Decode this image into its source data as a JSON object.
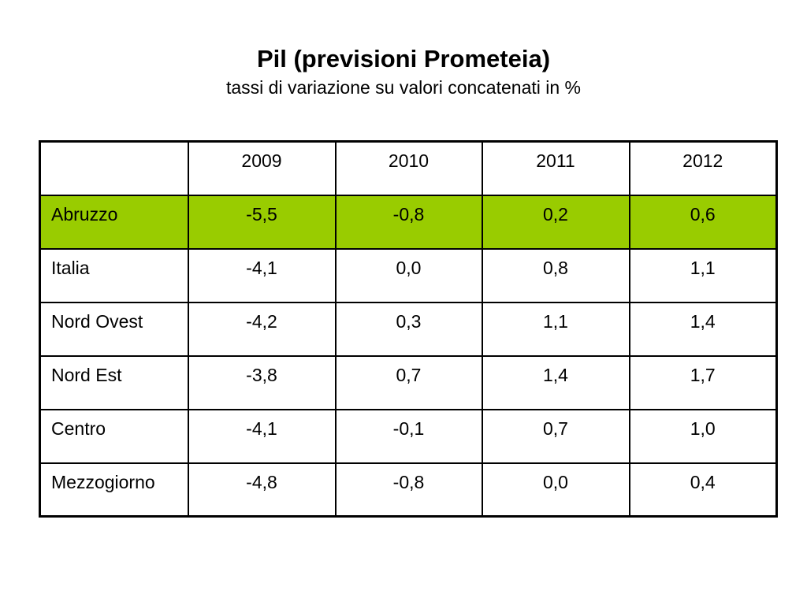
{
  "slide": {
    "title": "Pil (previsioni Prometeia)",
    "subtitle": "tassi di variazione su valori concatenati in %"
  },
  "table": {
    "corner": "",
    "columns": [
      "2009",
      "2010",
      "2011",
      "2012"
    ],
    "highlight_color": "#99cc00",
    "rows": [
      {
        "label": "Abruzzo",
        "values": [
          "-5,5",
          "-0,8",
          "0,2",
          "0,6"
        ],
        "highlighted": true
      },
      {
        "label": "Italia",
        "values": [
          "-4,1",
          "0,0",
          "0,8",
          "1,1"
        ]
      },
      {
        "label": "Nord Ovest",
        "values": [
          "-4,2",
          "0,3",
          "1,1",
          "1,4"
        ]
      },
      {
        "label": "Nord Est",
        "values": [
          "-3,8",
          "0,7",
          "1,4",
          "1,7"
        ]
      },
      {
        "label": "Centro",
        "values": [
          "-4,1",
          "-0,1",
          "0,7",
          "1,0"
        ]
      },
      {
        "label": "Mezzogiorno",
        "values": [
          "-4,8",
          "-0,8",
          "0,0",
          "0,4"
        ]
      }
    ]
  }
}
